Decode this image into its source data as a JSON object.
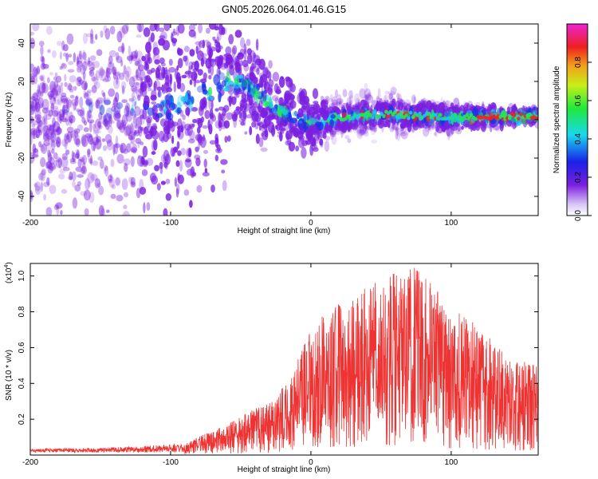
{
  "chart_data": [
    {
      "type": "heatmap",
      "title": "GN05.2026.064.01.46.G15",
      "xlabel": "Height of straight line (km)",
      "ylabel": "Frequency (Hz)",
      "xlim": [
        -200,
        162
      ],
      "ylim": [
        -50,
        50
      ],
      "xticks": [
        -200,
        -100,
        0,
        100
      ],
      "yticks": [
        -40,
        -20,
        0,
        20,
        40
      ],
      "colorbar": {
        "label": "Normalized spectral amplitude",
        "range": [
          0,
          1
        ],
        "ticks": [
          "0.0",
          "0.2",
          "0.4",
          "0.6",
          "0.8"
        ]
      },
      "ridge_frequency_hz": [
        {
          "x": -145,
          "f": 5
        },
        {
          "x": -100,
          "f": 7
        },
        {
          "x": -80,
          "f": 12
        },
        {
          "x": -60,
          "f": 22
        },
        {
          "x": -45,
          "f": 18
        },
        {
          "x": -30,
          "f": 8
        },
        {
          "x": -15,
          "f": 2
        },
        {
          "x": 0,
          "f": -2
        },
        {
          "x": 20,
          "f": 1
        },
        {
          "x": 50,
          "f": 3
        },
        {
          "x": 100,
          "f": 1
        },
        {
          "x": 160,
          "f": 2
        }
      ]
    },
    {
      "type": "line",
      "xlabel": "Height of straight line (km)",
      "ylabel": "SNR (10 * v/v)",
      "y_scale_label": "(x10",
      "y_scale_exp": "4",
      "xlim": [
        -200,
        162
      ],
      "ylim": [
        0,
        1.07
      ],
      "xticks": [
        -200,
        -100,
        0,
        100
      ],
      "yticks": [
        0.2,
        0.4,
        0.6,
        0.8,
        1.0
      ],
      "ytick_labels": [
        "0.2",
        "0.4",
        "0.6",
        "0.8",
        "1.0"
      ],
      "series": [
        {
          "name": "SNR",
          "color": "#ee3333",
          "envelope": [
            {
              "x": -200,
              "y": 0.03
            },
            {
              "x": -150,
              "y": 0.035
            },
            {
              "x": -120,
              "y": 0.045
            },
            {
              "x": -90,
              "y": 0.06
            },
            {
              "x": -75,
              "y": 0.12
            },
            {
              "x": -60,
              "y": 0.17
            },
            {
              "x": -45,
              "y": 0.24
            },
            {
              "x": -30,
              "y": 0.3
            },
            {
              "x": -15,
              "y": 0.42
            },
            {
              "x": 0,
              "y": 0.72
            },
            {
              "x": 15,
              "y": 0.82
            },
            {
              "x": 30,
              "y": 0.9
            },
            {
              "x": 45,
              "y": 0.98
            },
            {
              "x": 60,
              "y": 1.02
            },
            {
              "x": 72,
              "y": 1.06
            },
            {
              "x": 85,
              "y": 0.97
            },
            {
              "x": 100,
              "y": 0.83
            },
            {
              "x": 120,
              "y": 0.72
            },
            {
              "x": 140,
              "y": 0.55
            },
            {
              "x": 162,
              "y": 0.5
            }
          ]
        }
      ]
    }
  ],
  "colors": {
    "heatmap_base": "#7a1fe0",
    "line": "#ee3333",
    "ridge": "#1fe85a",
    "hot": "#ee2222"
  }
}
